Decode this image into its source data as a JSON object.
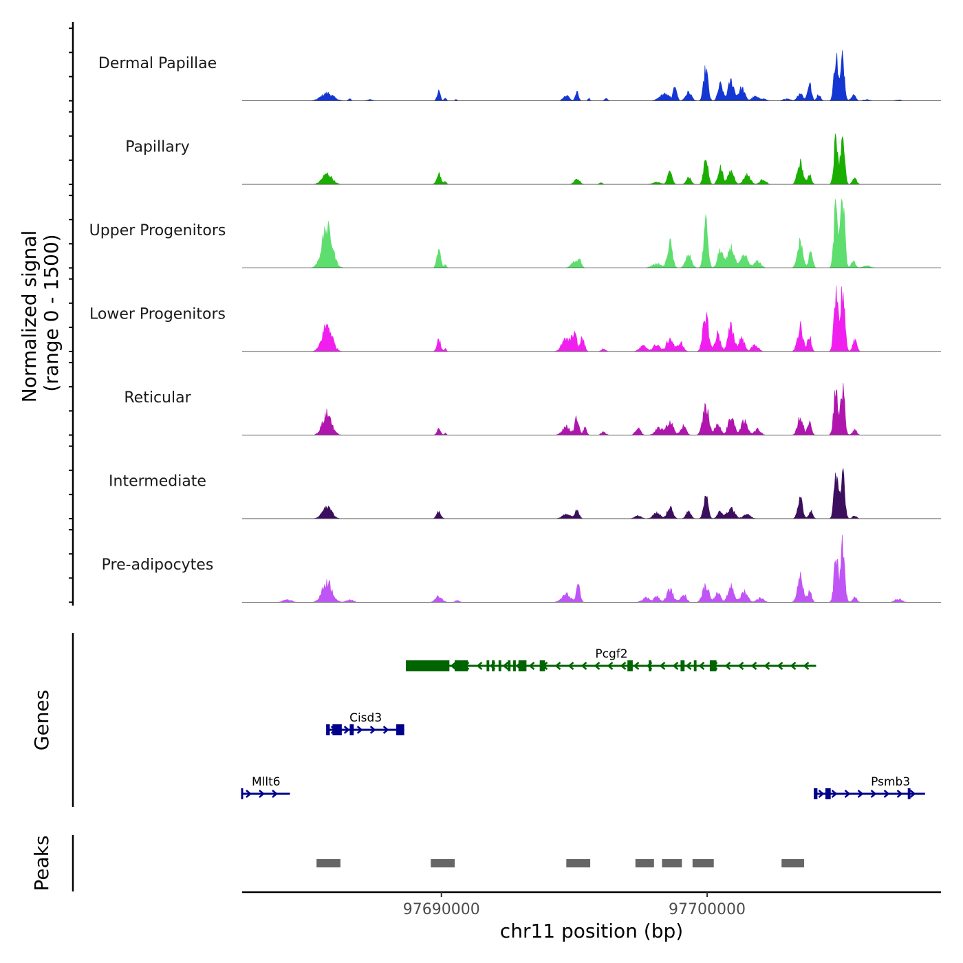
{
  "chart_data": {
    "type": "area",
    "title": "",
    "ylabel_line1": "Normalized signal",
    "ylabel_line2": "(range 0 - 1500)",
    "ylim": [
      0,
      1500
    ],
    "xlabel": "chr11 position (bp)",
    "xlim": [
      97682500,
      97708800
    ],
    "x_ticks": [
      97690000,
      97700000
    ],
    "x_tick_labels": [
      "97690000",
      "97700000"
    ],
    "gene_panel_label": "Genes",
    "peak_panel_label": "Peaks",
    "peak_axis_height_fraction": 0.3,
    "series": [
      {
        "name": "Dermal Papillae",
        "color": "#1437d4",
        "noise": 0.7,
        "peaks": [
          [
            97685700,
            180,
            220
          ],
          [
            97686550,
            50,
            50
          ],
          [
            97687300,
            30,
            100
          ],
          [
            97689900,
            220,
            60
          ],
          [
            97690150,
            80,
            40
          ],
          [
            97690550,
            30,
            40
          ],
          [
            97694700,
            120,
            110
          ],
          [
            97695100,
            200,
            60
          ],
          [
            97695550,
            60,
            40
          ],
          [
            97696200,
            50,
            60
          ],
          [
            97698400,
            160,
            180
          ],
          [
            97698800,
            380,
            60
          ],
          [
            97699300,
            200,
            110
          ],
          [
            97699950,
            750,
            80
          ],
          [
            97700500,
            380,
            90
          ],
          [
            97700900,
            470,
            110
          ],
          [
            97701300,
            300,
            110
          ],
          [
            97701800,
            100,
            110
          ],
          [
            97702100,
            50,
            110
          ],
          [
            97703000,
            50,
            120
          ],
          [
            97703500,
            180,
            100
          ],
          [
            97703850,
            420,
            70
          ],
          [
            97704200,
            150,
            70
          ],
          [
            97704850,
            1080,
            75
          ],
          [
            97705100,
            1020,
            70
          ],
          [
            97705500,
            150,
            80
          ],
          [
            97706000,
            30,
            110
          ],
          [
            97707200,
            20,
            100
          ]
        ]
      },
      {
        "name": "Papillary",
        "color": "#1aae00",
        "noise": 0.6,
        "peaks": [
          [
            97685700,
            260,
            180
          ],
          [
            97689900,
            280,
            80
          ],
          [
            97690150,
            80,
            40
          ],
          [
            97695100,
            140,
            100
          ],
          [
            97696000,
            40,
            60
          ],
          [
            97698100,
            50,
            150
          ],
          [
            97698600,
            330,
            80
          ],
          [
            97699300,
            180,
            90
          ],
          [
            97699950,
            700,
            80
          ],
          [
            97700500,
            420,
            90
          ],
          [
            97700900,
            330,
            110
          ],
          [
            97701500,
            240,
            120
          ],
          [
            97702100,
            120,
            110
          ],
          [
            97703500,
            540,
            100
          ],
          [
            97703850,
            260,
            70
          ],
          [
            97704850,
            1160,
            75
          ],
          [
            97705100,
            1280,
            70
          ],
          [
            97705550,
            140,
            80
          ]
        ]
      },
      {
        "name": "Upper Progenitors",
        "color": "#5ede6e",
        "noise": 0.65,
        "peaks": [
          [
            97685700,
            950,
            190
          ],
          [
            97689900,
            420,
            70
          ],
          [
            97690150,
            90,
            40
          ],
          [
            97695000,
            140,
            120
          ],
          [
            97695200,
            200,
            70
          ],
          [
            97698100,
            100,
            170
          ],
          [
            97698600,
            610,
            90
          ],
          [
            97699300,
            300,
            110
          ],
          [
            97699950,
            1100,
            80
          ],
          [
            97700500,
            430,
            100
          ],
          [
            97700900,
            500,
            120
          ],
          [
            97701400,
            300,
            130
          ],
          [
            97701900,
            160,
            120
          ],
          [
            97703500,
            620,
            100
          ],
          [
            97703900,
            380,
            70
          ],
          [
            97704850,
            1550,
            75
          ],
          [
            97705100,
            1650,
            75
          ],
          [
            97705500,
            150,
            80
          ],
          [
            97706000,
            50,
            140
          ]
        ]
      },
      {
        "name": "Lower Progenitors",
        "color": "#f01ff0",
        "noise": 0.8,
        "peaks": [
          [
            97685700,
            600,
            180
          ],
          [
            97689900,
            280,
            70
          ],
          [
            97690150,
            60,
            40
          ],
          [
            97694700,
            280,
            160
          ],
          [
            97695000,
            420,
            80
          ],
          [
            97695300,
            300,
            80
          ],
          [
            97696100,
            60,
            80
          ],
          [
            97697600,
            120,
            140
          ],
          [
            97698100,
            160,
            120
          ],
          [
            97698600,
            300,
            120
          ],
          [
            97699000,
            200,
            100
          ],
          [
            97699950,
            860,
            100
          ],
          [
            97700400,
            400,
            100
          ],
          [
            97700900,
            560,
            110
          ],
          [
            97701300,
            320,
            100
          ],
          [
            97701800,
            150,
            120
          ],
          [
            97703500,
            550,
            100
          ],
          [
            97703850,
            370,
            70
          ],
          [
            97704850,
            1530,
            75
          ],
          [
            97705100,
            1430,
            75
          ],
          [
            97705550,
            250,
            80
          ]
        ]
      },
      {
        "name": "Reticular",
        "color": "#b016ae",
        "noise": 0.8,
        "peaks": [
          [
            97685700,
            480,
            170
          ],
          [
            97689900,
            130,
            70
          ],
          [
            97690150,
            50,
            40
          ],
          [
            97694700,
            190,
            150
          ],
          [
            97695100,
            380,
            80
          ],
          [
            97695400,
            160,
            60
          ],
          [
            97696100,
            70,
            80
          ],
          [
            97697400,
            180,
            90
          ],
          [
            97698200,
            160,
            140
          ],
          [
            97698600,
            300,
            120
          ],
          [
            97699100,
            200,
            100
          ],
          [
            97699950,
            660,
            110
          ],
          [
            97700400,
            260,
            100
          ],
          [
            97700900,
            430,
            110
          ],
          [
            97701400,
            300,
            130
          ],
          [
            97701900,
            130,
            110
          ],
          [
            97703500,
            400,
            100
          ],
          [
            97703850,
            300,
            70
          ],
          [
            97704850,
            1070,
            80
          ],
          [
            97705100,
            1050,
            75
          ],
          [
            97705550,
            120,
            80
          ]
        ]
      },
      {
        "name": "Intermediate",
        "color": "#3c0e5e",
        "noise": 0.6,
        "peaks": [
          [
            97685700,
            300,
            170
          ],
          [
            97689900,
            170,
            80
          ],
          [
            97694700,
            120,
            140
          ],
          [
            97695100,
            200,
            80
          ],
          [
            97697400,
            70,
            120
          ],
          [
            97698100,
            140,
            130
          ],
          [
            97698600,
            300,
            100
          ],
          [
            97699300,
            180,
            90
          ],
          [
            97699950,
            620,
            80
          ],
          [
            97700500,
            180,
            100
          ],
          [
            97700900,
            260,
            130
          ],
          [
            97701500,
            100,
            130
          ],
          [
            97703500,
            500,
            90
          ],
          [
            97703900,
            180,
            70
          ],
          [
            97704850,
            1110,
            75
          ],
          [
            97705100,
            1090,
            75
          ],
          [
            97705550,
            70,
            80
          ]
        ]
      },
      {
        "name": "Pre-adipocytes",
        "color": "#bf55f4",
        "noise": 0.8,
        "peaks": [
          [
            97685700,
            470,
            180
          ],
          [
            97684200,
            60,
            150
          ],
          [
            97686550,
            60,
            120
          ],
          [
            97689900,
            130,
            120
          ],
          [
            97690600,
            40,
            80
          ],
          [
            97694700,
            180,
            160
          ],
          [
            97695150,
            350,
            70
          ],
          [
            97697700,
            100,
            140
          ],
          [
            97698100,
            130,
            100
          ],
          [
            97698600,
            280,
            120
          ],
          [
            97699100,
            200,
            100
          ],
          [
            97699950,
            380,
            120
          ],
          [
            97700400,
            200,
            100
          ],
          [
            97700900,
            380,
            110
          ],
          [
            97701400,
            250,
            120
          ],
          [
            97702000,
            100,
            120
          ],
          [
            97703500,
            570,
            100
          ],
          [
            97703850,
            280,
            70
          ],
          [
            97704850,
            1050,
            75
          ],
          [
            97705100,
            1330,
            75
          ],
          [
            97705550,
            110,
            80
          ],
          [
            97707200,
            70,
            130
          ]
        ]
      }
    ],
    "genes": [
      {
        "name": "Pcgf2",
        "strand": "-",
        "color": "#006400",
        "row": 1,
        "start": 97688700,
        "end": 97704100,
        "exons": [
          [
            97688700,
            97690300
          ],
          [
            97690500,
            97691000
          ],
          [
            97691700,
            97691800
          ],
          [
            97691900,
            97692000
          ],
          [
            97692150,
            97692250
          ],
          [
            97692500,
            97692600
          ],
          [
            97692700,
            97692800
          ],
          [
            97692900,
            97693200
          ],
          [
            97693700,
            97693900
          ],
          [
            97697000,
            97697200
          ],
          [
            97697800,
            97697900
          ],
          [
            97699000,
            97699150
          ],
          [
            97699500,
            97699600
          ],
          [
            97700100,
            97700350
          ]
        ]
      },
      {
        "name": "Cisd3",
        "strand": "+",
        "color": "#00008b",
        "row": 2,
        "start": 97685700,
        "end": 97688600,
        "exons": [
          [
            97685700,
            97685800
          ],
          [
            97685900,
            97686250
          ],
          [
            97686550,
            97686700
          ],
          [
            97688300,
            97688600
          ]
        ]
      },
      {
        "name": "Mllt6",
        "strand": "+",
        "color": "#00008b",
        "row": 3,
        "start": 97682500,
        "end": 97684300,
        "exons": []
      },
      {
        "name": "Psmb3",
        "strand": "+",
        "color": "#00008b",
        "row": 3,
        "start": 97704050,
        "end": 97708200,
        "exons": [
          [
            97704050,
            97704150
          ],
          [
            97704450,
            97704650
          ],
          [
            97707550,
            97707650
          ]
        ]
      }
    ],
    "peaks": [
      [
        97685300,
        97686200
      ],
      [
        97689600,
        97690500
      ],
      [
        97694700,
        97695600
      ],
      [
        97697300,
        97698000
      ],
      [
        97698300,
        97699050
      ],
      [
        97699450,
        97700250
      ],
      [
        97702800,
        97703650
      ]
    ]
  }
}
